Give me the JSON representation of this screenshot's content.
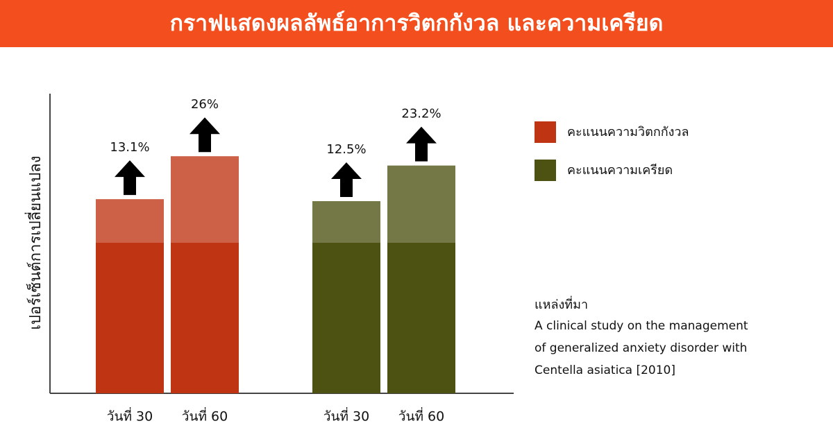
{
  "chart_data": {
    "type": "bar",
    "title": "กราฟแสดงผลลัพธ์อาการวิตกกังวล และความเครียด",
    "y_label": "เปอร์เซ็นต์การเปลี่ยนแปลง",
    "categories": [
      "วันที่ 30",
      "วันที่ 60"
    ],
    "series": [
      {
        "name": "คะแนนความวิตกกังวล",
        "color": "#bf3413",
        "values": [
          13.1,
          26
        ],
        "value_labels": [
          "13.1%",
          "26%"
        ]
      },
      {
        "name": "คะแนนความเครียด",
        "color": "#4d5213",
        "values": [
          12.5,
          23.2
        ],
        "value_labels": [
          "12.5%",
          "23.2%"
        ]
      }
    ],
    "source": {
      "label": "แหล่งที่มา",
      "lines": [
        "A clinical study on the management",
        "of generalized anxiety disorder with",
        "Centella asiatica [2010]"
      ]
    }
  }
}
